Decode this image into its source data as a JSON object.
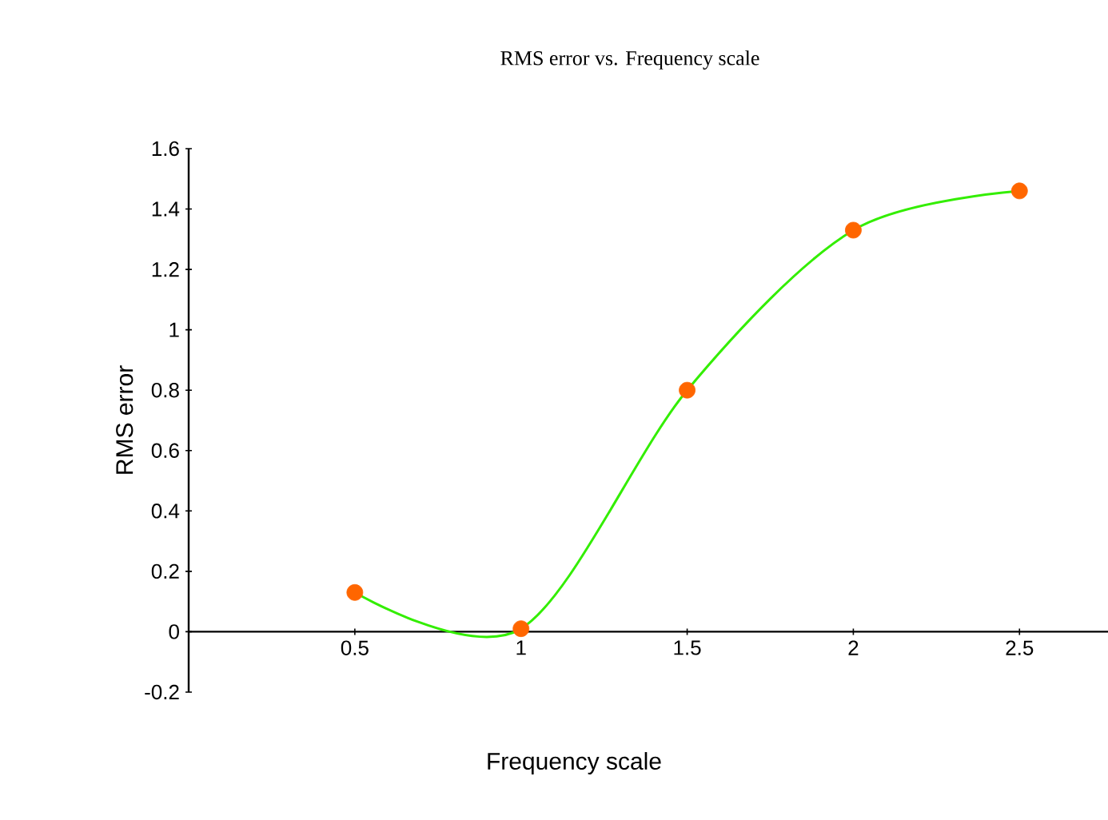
{
  "chart_data": {
    "type": "line",
    "title": "RMS error vs. Frequency scale",
    "xlabel": "Frequency scale",
    "ylabel": "RMS error",
    "x": [
      0.5,
      1,
      1.5,
      2,
      2.5
    ],
    "series": [
      {
        "color": "#33ee00",
        "marker": "none",
        "values": [
          0.13,
          0.01,
          0.8,
          1.33,
          1.46
        ]
      },
      {
        "type": "scatter",
        "color": "#ff6600",
        "marker": "circle",
        "values": [
          0.13,
          0.01,
          0.8,
          1.33,
          1.46
        ]
      }
    ],
    "xlim": [
      0,
      2.8
    ],
    "ylim": [
      -0.2,
      1.6
    ],
    "xticks": [
      0.5,
      1,
      1.5,
      2,
      2.5
    ],
    "yticks": [
      -0.2,
      0,
      0.2,
      0.4,
      0.6,
      0.8,
      1,
      1.2,
      1.4,
      1.6
    ],
    "grid": false
  }
}
